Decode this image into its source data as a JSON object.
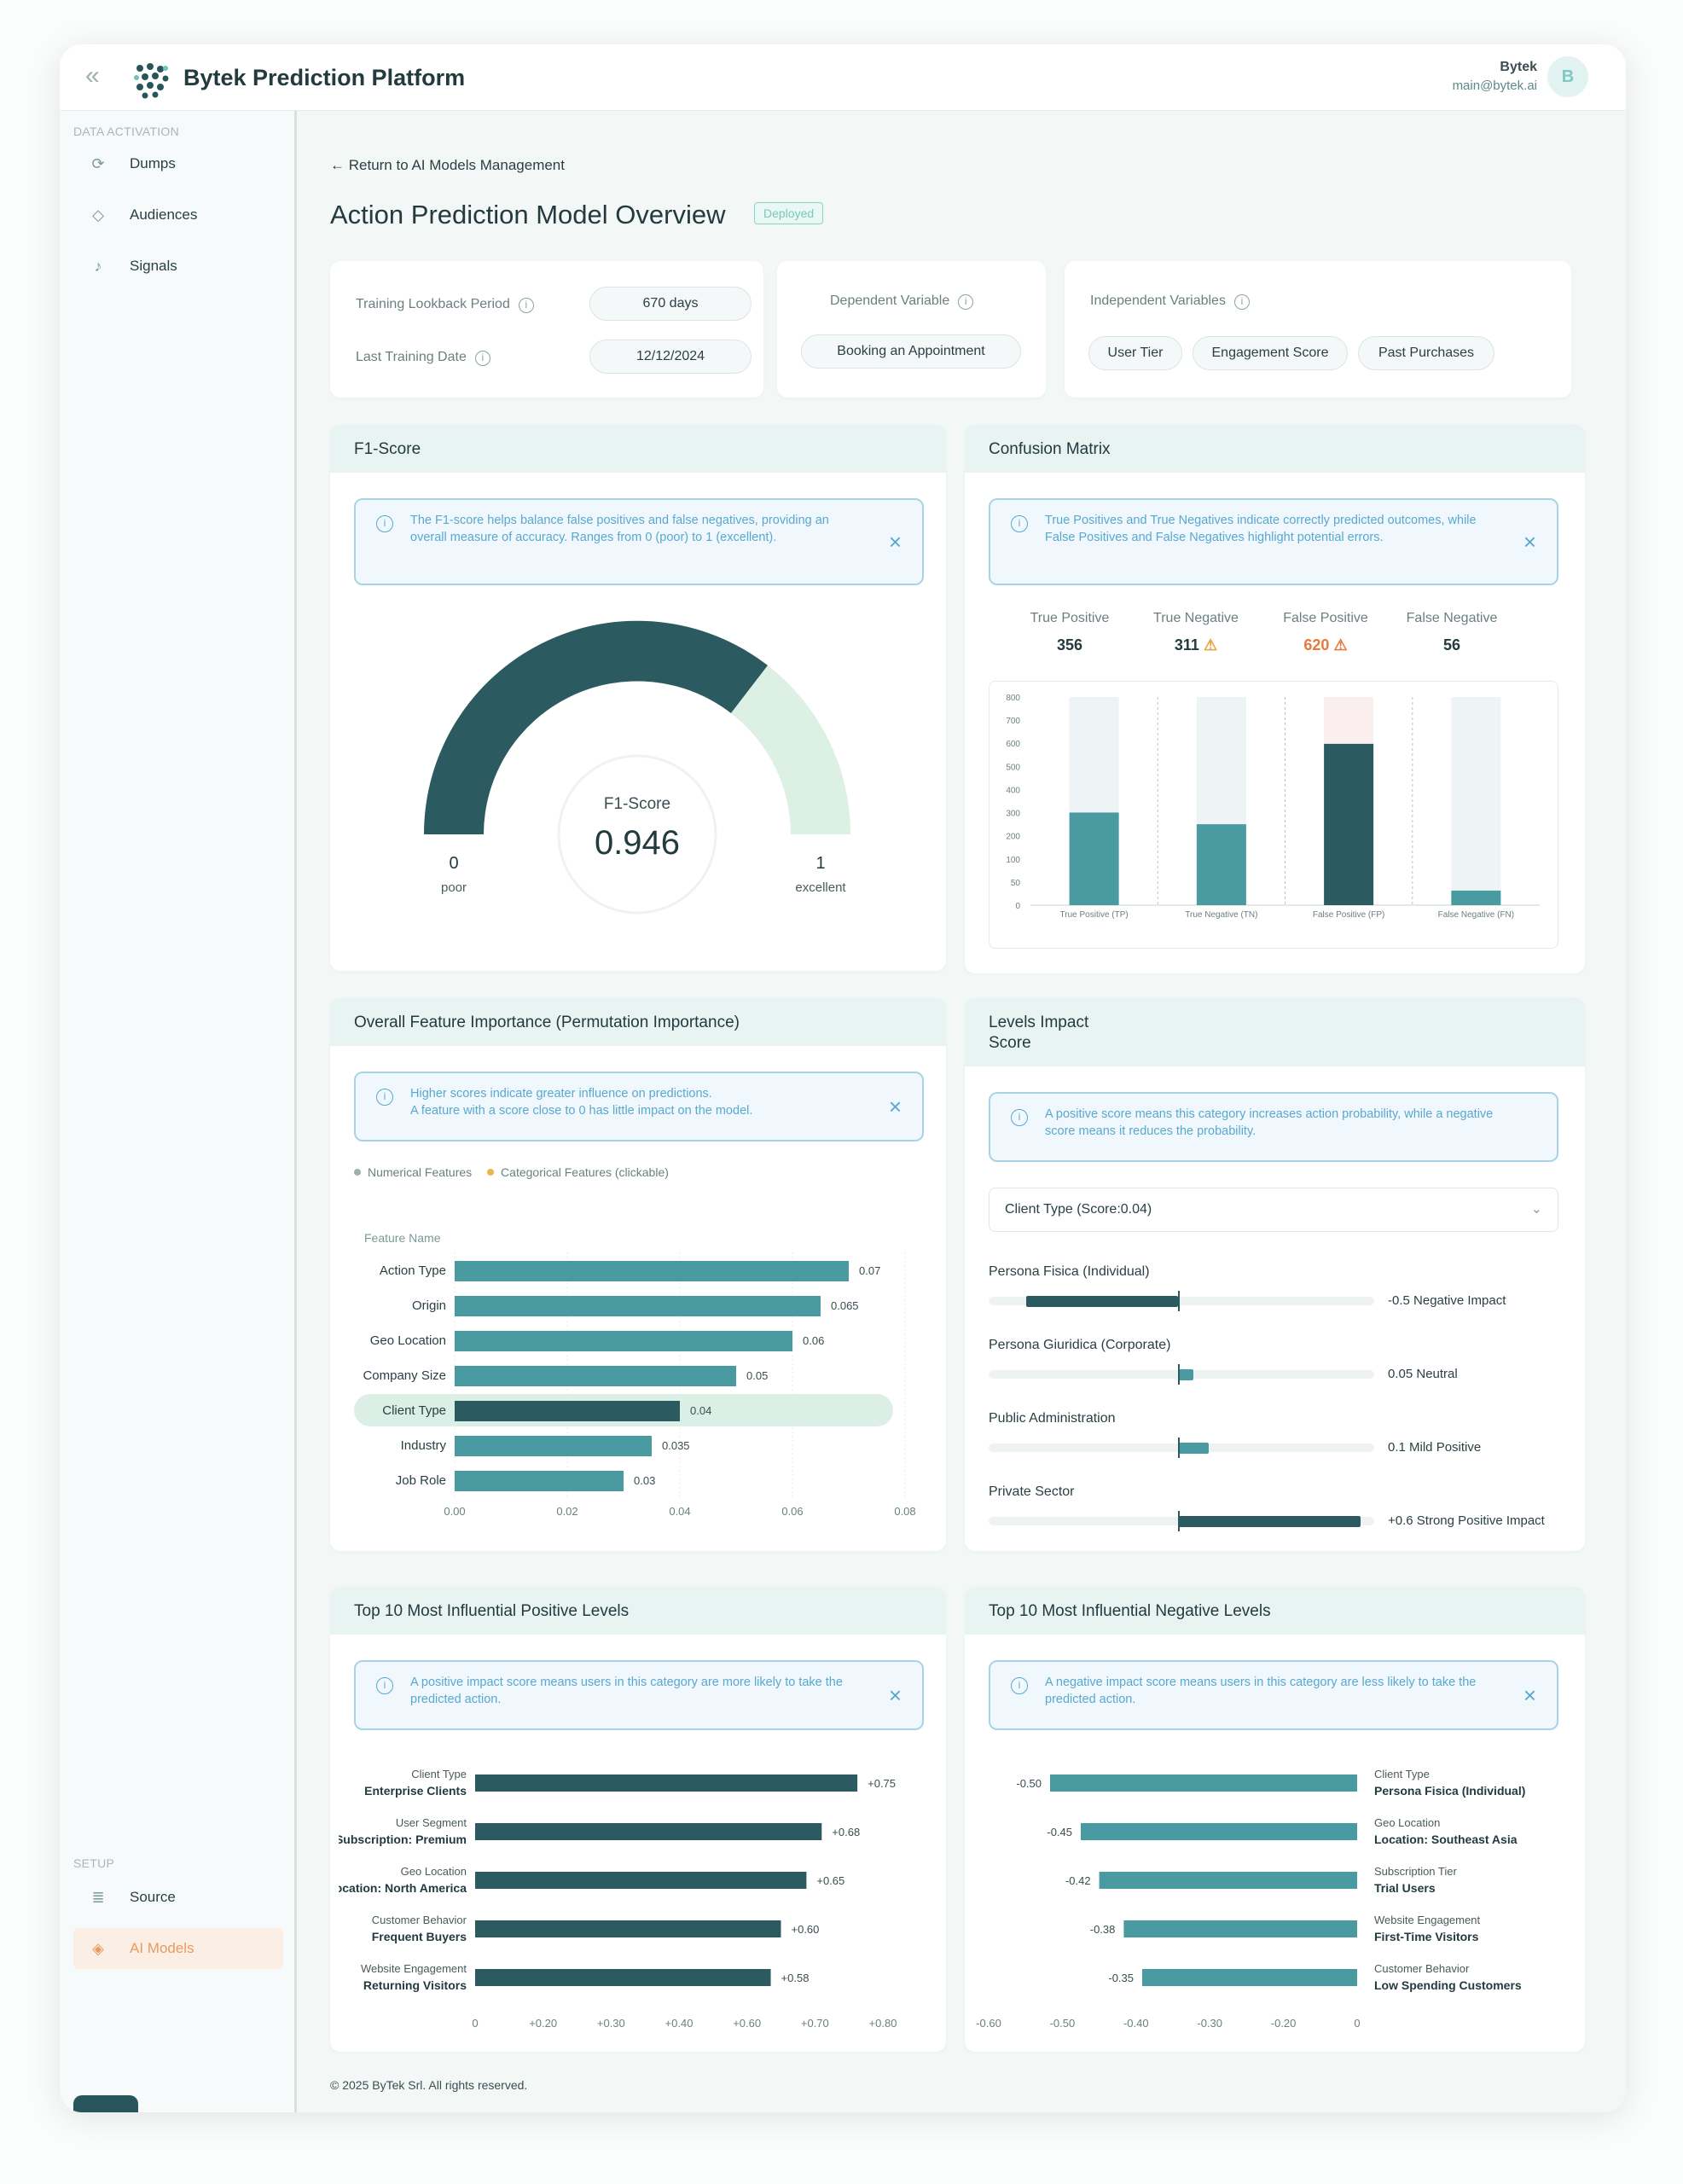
{
  "app": {
    "brand": "Bytek Prediction Platform"
  },
  "user": {
    "name": "Bytek",
    "email": "main@bytek.ai",
    "initial": "B"
  },
  "sidebar": {
    "section_data": "DATA ACTIVATION",
    "section_setup": "SETUP",
    "items": [
      {
        "label": "Dumps",
        "icon": "refresh-icon"
      },
      {
        "label": "Audiences",
        "icon": "tag-icon"
      },
      {
        "label": "Signals",
        "icon": "bell-icon"
      },
      {
        "label": "Source",
        "icon": "database-icon"
      },
      {
        "label": "AI Models",
        "icon": "cube-icon",
        "active": true
      }
    ]
  },
  "header": {
    "back_label": "Return to AI Models Management",
    "title": "Action Prediction Model Overview",
    "status": "Deployed"
  },
  "info": {
    "training_label": "Training Lookback Period",
    "training_value": "670 days",
    "last_training_label": "Last Training Date",
    "last_training_value": "12/12/2024",
    "dependent_label": "Dependent Variable",
    "dependent_value": "Booking an Appointment",
    "independent_label": "Independent Variables",
    "independent_values": [
      "User Tier",
      "Engagement Score",
      "Past Purchases"
    ]
  },
  "f1": {
    "title": "F1-Score",
    "notice": "The F1-score helps balance false positives and false negatives, providing an overall measure of accuracy. Ranges from 0 (poor) to 1 (excellent).",
    "gauge_label": "F1-Score",
    "value": "0.946",
    "min": "0",
    "min_label": "poor",
    "max": "1",
    "max_label": "excellent"
  },
  "confusion": {
    "title": "Confusion Matrix",
    "notice": "True Positives and True Negatives indicate correctly predicted outcomes, while False Positives and False Negatives highlight potential errors.",
    "headers": [
      {
        "label": "True Positive",
        "value": "356",
        "warn": false
      },
      {
        "label": "True Negative",
        "value": "311",
        "warn": true
      },
      {
        "label": "False Positive",
        "value": "620",
        "warn": true
      },
      {
        "label": "False Negative",
        "value": "56",
        "warn": false
      }
    ],
    "yticks": [
      "800",
      "700",
      "600",
      "500",
      "400",
      "300",
      "200",
      "100",
      "50",
      "0"
    ],
    "xlabels": [
      "True Positive (TP)",
      "True Negative (TN)",
      "False Positive (FP)",
      "False Negative (FN)"
    ]
  },
  "feature_importance": {
    "title": "Overall Feature Importance (Permutation Importance)",
    "notice_line1": "Higher scores indicate greater influence on predictions.",
    "notice_line2": "A feature with a score close to 0 has little impact on the model.",
    "legend_numerical": "Numerical Features",
    "legend_categorical": "Categorical Features (clickable)",
    "axis_title": "Feature Name",
    "xticks": [
      "0.00",
      "0.02",
      "0.04",
      "0.06",
      "0.08"
    ]
  },
  "levels_impact": {
    "title_line1": "Levels Impact",
    "title_line2": "Score",
    "notice": "A positive score means this category increases action probability, while a negative score means it reduces the probability.",
    "select_value": "Client Type (Score:0.04)",
    "rows": [
      {
        "label": "Persona Fisica (Individual)",
        "value": -0.5,
        "text": "-0.5",
        "desc": "Negative Impact"
      },
      {
        "label": "Persona Giuridica (Corporate)",
        "value": 0.05,
        "text": "0.05",
        "desc": "Neutral"
      },
      {
        "label": "Public Administration",
        "value": 0.1,
        "text": "0.1",
        "desc": "Mild Positive"
      },
      {
        "label": "Private Sector",
        "value": 0.6,
        "text": "+0.6",
        "desc": "Strong Positive Impact"
      }
    ]
  },
  "top_positive": {
    "title": "Top 10 Most Influential Positive Levels",
    "notice": "A positive impact score means users in this category are more likely to take the predicted action.",
    "xticks": [
      "0",
      "+0.20",
      "+0.30",
      "+0.40",
      "+0.60",
      "+0.70",
      "+0.80"
    ]
  },
  "top_negative": {
    "title": "Top 10 Most Influential Negative Levels",
    "notice": "A negative impact score means users in this category are less likely to take the predicted action.",
    "xticks": [
      "-0.60",
      "-0.50",
      "-0.40",
      "-0.30",
      "-0.20",
      "0"
    ]
  },
  "footer": {
    "text": "© 2025 ByTek Srl. All rights reserved."
  },
  "colors": {
    "dark": "#2b5a60",
    "mid": "#4a9aa1",
    "light": "#dcefe6",
    "accent": "#e89a63",
    "warn": "#e8783e"
  },
  "chart_data": [
    {
      "type": "bar",
      "title": "Confusion Matrix",
      "categories": [
        "True Positive (TP)",
        "True Negative (TN)",
        "False Positive (FP)",
        "False Negative (FN)"
      ],
      "values": [
        356,
        311,
        620,
        56
      ],
      "ylim": [
        0,
        800
      ]
    },
    {
      "type": "bar",
      "orientation": "horizontal",
      "title": "Overall Feature Importance (Permutation Importance)",
      "ylabel": "Feature Name",
      "categories": [
        "Action Type",
        "Origin",
        "Geo Location",
        "Company Size",
        "Client Type",
        "Industry",
        "Job Role"
      ],
      "values": [
        0.07,
        0.065,
        0.06,
        0.05,
        0.04,
        0.035,
        0.03
      ],
      "value_labels": [
        "0.07",
        "0.065",
        "0.06",
        "0.05",
        "0.04",
        "0.035",
        "0.03"
      ],
      "highlighted": "Client Type",
      "xlim": [
        0,
        0.08
      ]
    },
    {
      "type": "bar",
      "orientation": "horizontal",
      "title": "Top 10 Most Influential Positive Levels",
      "categories": [
        {
          "group": "Client Type",
          "level": "Enterprise Clients"
        },
        {
          "group": "User Segment",
          "level": "Subscription: Premium"
        },
        {
          "group": "Geo Location",
          "level": "Location: North America"
        },
        {
          "group": "Customer Behavior",
          "level": "Frequent Buyers"
        },
        {
          "group": "Website Engagement",
          "level": "Returning Visitors"
        }
      ],
      "values": [
        0.75,
        0.68,
        0.65,
        0.6,
        0.58
      ],
      "value_labels": [
        "+0.75",
        "+0.68",
        "+0.65",
        "+0.60",
        "+0.58"
      ],
      "xlim": [
        0,
        0.8
      ]
    },
    {
      "type": "bar",
      "orientation": "horizontal",
      "title": "Top 10 Most Influential Negative Levels",
      "categories": [
        {
          "group": "Client Type",
          "level": "Persona Fisica (Individual)"
        },
        {
          "group": "Geo Location",
          "level": "Location: Southeast Asia"
        },
        {
          "group": "Subscription Tier",
          "level": "Trial Users"
        },
        {
          "group": "Website Engagement",
          "level": "First-Time Visitors"
        },
        {
          "group": "Customer Behavior",
          "level": "Low Spending Customers"
        }
      ],
      "values": [
        -0.5,
        -0.45,
        -0.42,
        -0.38,
        -0.35
      ],
      "value_labels": [
        "-0.50",
        "-0.45",
        "-0.42",
        "-0.38",
        "-0.35"
      ],
      "xlim": [
        -0.6,
        0
      ]
    }
  ]
}
